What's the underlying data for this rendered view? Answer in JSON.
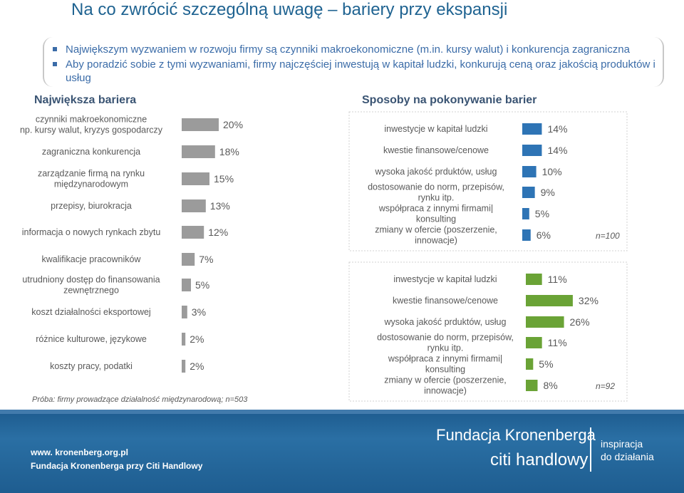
{
  "title": "Na co zwrócić szczególną uwagę – bariery przy ekspansji",
  "bullets": [
    "Największym wyzwaniem w rozwoju firmy są czynniki makroekonomiczne (m.in. kursy walut) i konkurencja zagraniczna",
    "Aby poradzić sobie z tymi wyzwaniami, firmy najczęściej inwestują w kapitał ludzki, konkurują ceną oraz jakością produktów i usług"
  ],
  "left_title": "Największa bariera",
  "right_title": "Sposoby na pokonywanie barier",
  "sample_note": "Próba: firmy prowadzące działalność międzynarodową; n=503",
  "footer": {
    "org_name": "Fundacja Kronenberga",
    "citi": "citi handlowy",
    "slogan_line1": "inspiracja",
    "slogan_line2": "do działania",
    "website": "www. kronenberg.org.pl",
    "org_full": "Fundacja Kronenberga przy Citi Handlowy"
  },
  "colors": {
    "bar_gray": "#9b9b9b",
    "bar_blue": "#2e74b5",
    "bar_purple": "#5b4a8e",
    "bar_green": "#6aa336",
    "text_blue": "#1f6391",
    "footer_blue": "#1d5b8e"
  },
  "chart_data": [
    {
      "type": "bar",
      "orientation": "horizontal",
      "title": "Największa bariera",
      "color": "#9b9b9b",
      "categories": [
        [
          "czynniki makroekonomiczne",
          "np. kursy walut, kryzys gospodarczy"
        ],
        [
          "zagraniczna konkurencja"
        ],
        [
          "zarządzanie firmą na rynku",
          "międzynarodowym"
        ],
        [
          "przepisy, biurokracja"
        ],
        [
          "informacja o nowych rynkach zbytu"
        ],
        [
          "kwalifikacje pracowników"
        ],
        [
          "utrudniony dostęp do finansowania",
          "zewnętrznego"
        ],
        [
          "koszt działalności eksportowej"
        ],
        [
          "różnice kulturowe, językowe"
        ],
        [
          "koszty pracy, podatki"
        ]
      ],
      "values": [
        20,
        18,
        15,
        13,
        12,
        7,
        5,
        3,
        2,
        2
      ],
      "value_labels": [
        "20%",
        "18%",
        "15%",
        "13%",
        "12%",
        "7%",
        "5%",
        "3%",
        "2%",
        "2%"
      ]
    },
    {
      "type": "bar",
      "orientation": "horizontal",
      "color": "#2e74b5",
      "categories": [
        [
          "inwestycje w kapitał ludzki"
        ],
        [
          "kwestie finansowe/cenowe"
        ],
        [
          "wysoka jakość prduktów, usług"
        ],
        [
          "dostosowanie do norm, przepisów,",
          "rynku itp."
        ],
        [
          "współpraca z innymi firmami|",
          "konsulting"
        ],
        [
          "zmiany w ofercie (poszerzenie,",
          "innowacje)"
        ]
      ],
      "values": [
        14,
        14,
        10,
        9,
        5,
        6
      ],
      "value_labels": [
        "14%",
        "14%",
        "10%",
        "9%",
        "5%",
        "6%"
      ],
      "n_label": "n=100"
    },
    {
      "type": "bar",
      "orientation": "horizontal",
      "color": "#6aa336",
      "categories": [
        [
          "inwestycje w kapitał ludzki"
        ],
        [
          "kwestie finansowe/cenowe"
        ],
        [
          "wysoka jakość prduktów, usług"
        ],
        [
          "dostosowanie do norm, przepisów,",
          "rynku itp."
        ],
        [
          "współpraca z innymi firmami|",
          "konsulting"
        ],
        [
          "zmiany w ofercie (poszerzenie,",
          "innowacje)"
        ]
      ],
      "values": [
        11,
        32,
        26,
        11,
        5,
        8
      ],
      "value_labels": [
        "11%",
        "32%",
        "26%",
        "11%",
        "5%",
        "8%"
      ],
      "n_label": "n=92"
    }
  ]
}
